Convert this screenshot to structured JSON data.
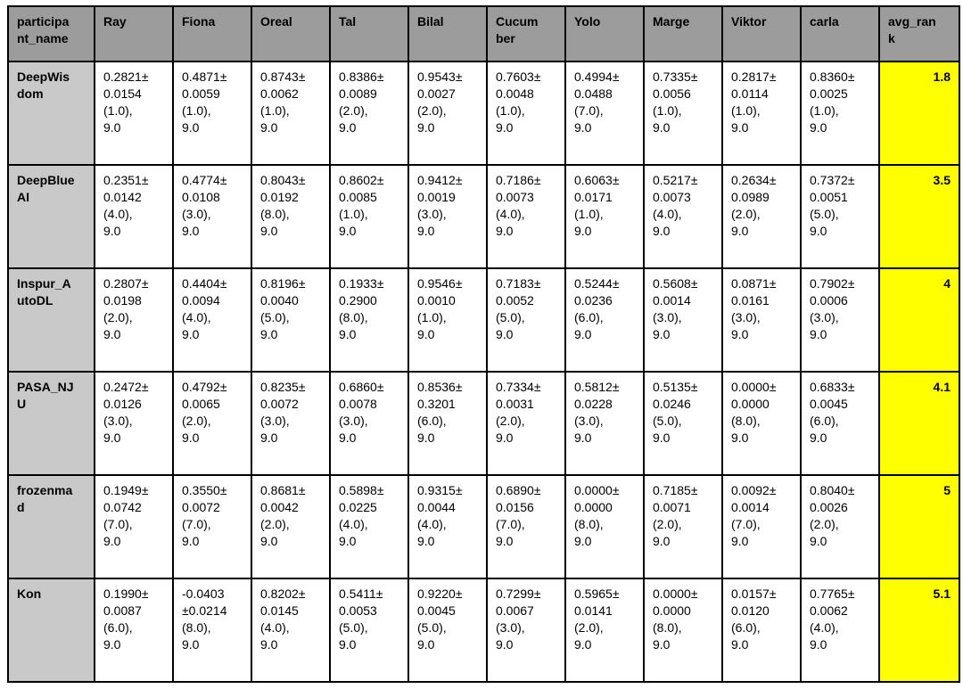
{
  "colors": {
    "header_bg": "#9c9c9c",
    "participant_col_bg": "#c9c9c9",
    "avg_rank_bg": "#ffff00",
    "border": "#000000",
    "cell_bg": "#ffffff",
    "text": "#000000"
  },
  "chart_data": {
    "type": "table",
    "columns": [
      "participant_name",
      "Ray",
      "Fiona",
      "Oreal",
      "Tal",
      "Bilal",
      "Cucumber",
      "Yolo",
      "Marge",
      "Viktor",
      "carla",
      "avg_rank"
    ],
    "column_labels": [
      "participa\nnt_name",
      "Ray",
      "Fiona",
      "Oreal",
      "Tal",
      "Bilal",
      "Cucum\nber",
      "Yolo",
      "Marge",
      "Viktor",
      "carla",
      "avg_ran\nk"
    ],
    "rows": [
      {
        "participant": "DeepWisdom",
        "label": "DeepWis\ndom",
        "cells": [
          "0.2821±\n0.0154\n(1.0),\n9.0",
          "0.4871±\n0.0059\n(1.0),\n9.0",
          "0.8743±\n0.0062\n(1.0),\n9.0",
          "0.8386±\n0.0089\n(2.0),\n9.0",
          "0.9543±\n0.0027\n(2.0),\n9.0",
          "0.7603±\n0.0048\n(1.0),\n9.0",
          "0.4994±\n0.0488\n(7.0),\n9.0",
          "0.7335±\n0.0056\n(1.0),\n9.0",
          "0.2817±\n0.0114\n(1.0),\n9.0",
          "0.8360±\n0.0025\n(1.0),\n9.0"
        ],
        "avg_rank": "1.8"
      },
      {
        "participant": "DeepBlueAI",
        "label": "DeepBlue\nAI",
        "cells": [
          "0.2351±\n0.0142\n(4.0),\n9.0",
          "0.4774±\n0.0108\n(3.0),\n9.0",
          "0.8043±\n0.0192\n(8.0),\n9.0",
          "0.8602±\n0.0085\n(1.0),\n9.0",
          "0.9412±\n0.0019\n(3.0),\n9.0",
          "0.7186±\n0.0073\n(4.0),\n9.0",
          "0.6063±\n0.0171\n(1.0),\n9.0",
          "0.5217±\n0.0073\n(4.0),\n9.0",
          "0.2634±\n0.0989\n(2.0),\n9.0",
          "0.7372±\n0.0051\n(5.0),\n9.0"
        ],
        "avg_rank": "3.5"
      },
      {
        "participant": "Inspur_AutoDL",
        "label": "Inspur_A\nutoDL",
        "cells": [
          "0.2807±\n0.0198\n(2.0),\n9.0",
          "0.4404±\n0.0094\n(4.0),\n9.0",
          "0.8196±\n0.0040\n(5.0),\n9.0",
          "0.1933±\n0.2900\n(8.0),\n9.0",
          "0.9546±\n0.0010\n(1.0),\n9.0",
          "0.7183±\n0.0052\n(5.0),\n9.0",
          "0.5244±\n0.0236\n(6.0),\n9.0",
          "0.5608±\n0.0014\n(3.0),\n9.0",
          "0.0871±\n0.0161\n(3.0),\n9.0",
          "0.7902±\n0.0006\n(3.0),\n9.0"
        ],
        "avg_rank": "4"
      },
      {
        "participant": "PASA_NJU",
        "label": "PASA_NJ\nU",
        "cells": [
          "0.2472±\n0.0126\n(3.0),\n9.0",
          "0.4792±\n0.0065\n(2.0),\n9.0",
          "0.8235±\n0.0072\n(3.0),\n9.0",
          "0.6860±\n0.0078\n(3.0),\n9.0",
          "0.8536±\n0.3201\n(6.0),\n9.0",
          "0.7334±\n0.0031\n(2.0),\n9.0",
          "0.5812±\n0.0228\n(3.0),\n9.0",
          "0.5135±\n0.0246\n(5.0),\n9.0",
          "0.0000±\n0.0000\n(8.0),\n9.0",
          "0.6833±\n0.0045\n(6.0),\n9.0"
        ],
        "avg_rank": "4.1"
      },
      {
        "participant": "frozenmad",
        "label": "frozenma\nd",
        "cells": [
          "0.1949±\n0.0742\n(7.0),\n9.0",
          "0.3550±\n0.0072\n(7.0),\n9.0",
          "0.8681±\n0.0042\n(2.0),\n9.0",
          "0.5898±\n0.0225\n(4.0),\n9.0",
          "0.9315±\n0.0044\n(4.0),\n9.0",
          "0.6890±\n0.0156\n(7.0),\n9.0",
          "0.0000±\n0.0000\n(8.0),\n9.0",
          "0.7185±\n0.0071\n(2.0),\n9.0",
          "0.0092±\n0.0014\n(7.0),\n9.0",
          "0.8040±\n0.0026\n(2.0),\n9.0"
        ],
        "avg_rank": "5"
      },
      {
        "participant": "Kon",
        "label": "Kon",
        "cells": [
          "0.1990±\n0.0087\n(6.0),\n9.0",
          "-0.0403\n±0.0214\n(8.0),\n9.0",
          "0.8202±\n0.0145\n(4.0),\n9.0",
          "0.5411±\n0.0053\n(5.0),\n9.0",
          "0.9220±\n0.0045\n(5.0),\n9.0",
          "0.7299±\n0.0067\n(3.0),\n9.0",
          "0.5965±\n0.0141\n(2.0),\n9.0",
          "0.0000±\n0.0000\n(8.0),\n9.0",
          "0.0157±\n0.0120\n(6.0),\n9.0",
          "0.7765±\n0.0062\n(4.0),\n9.0"
        ],
        "avg_rank": "5.1"
      }
    ]
  }
}
